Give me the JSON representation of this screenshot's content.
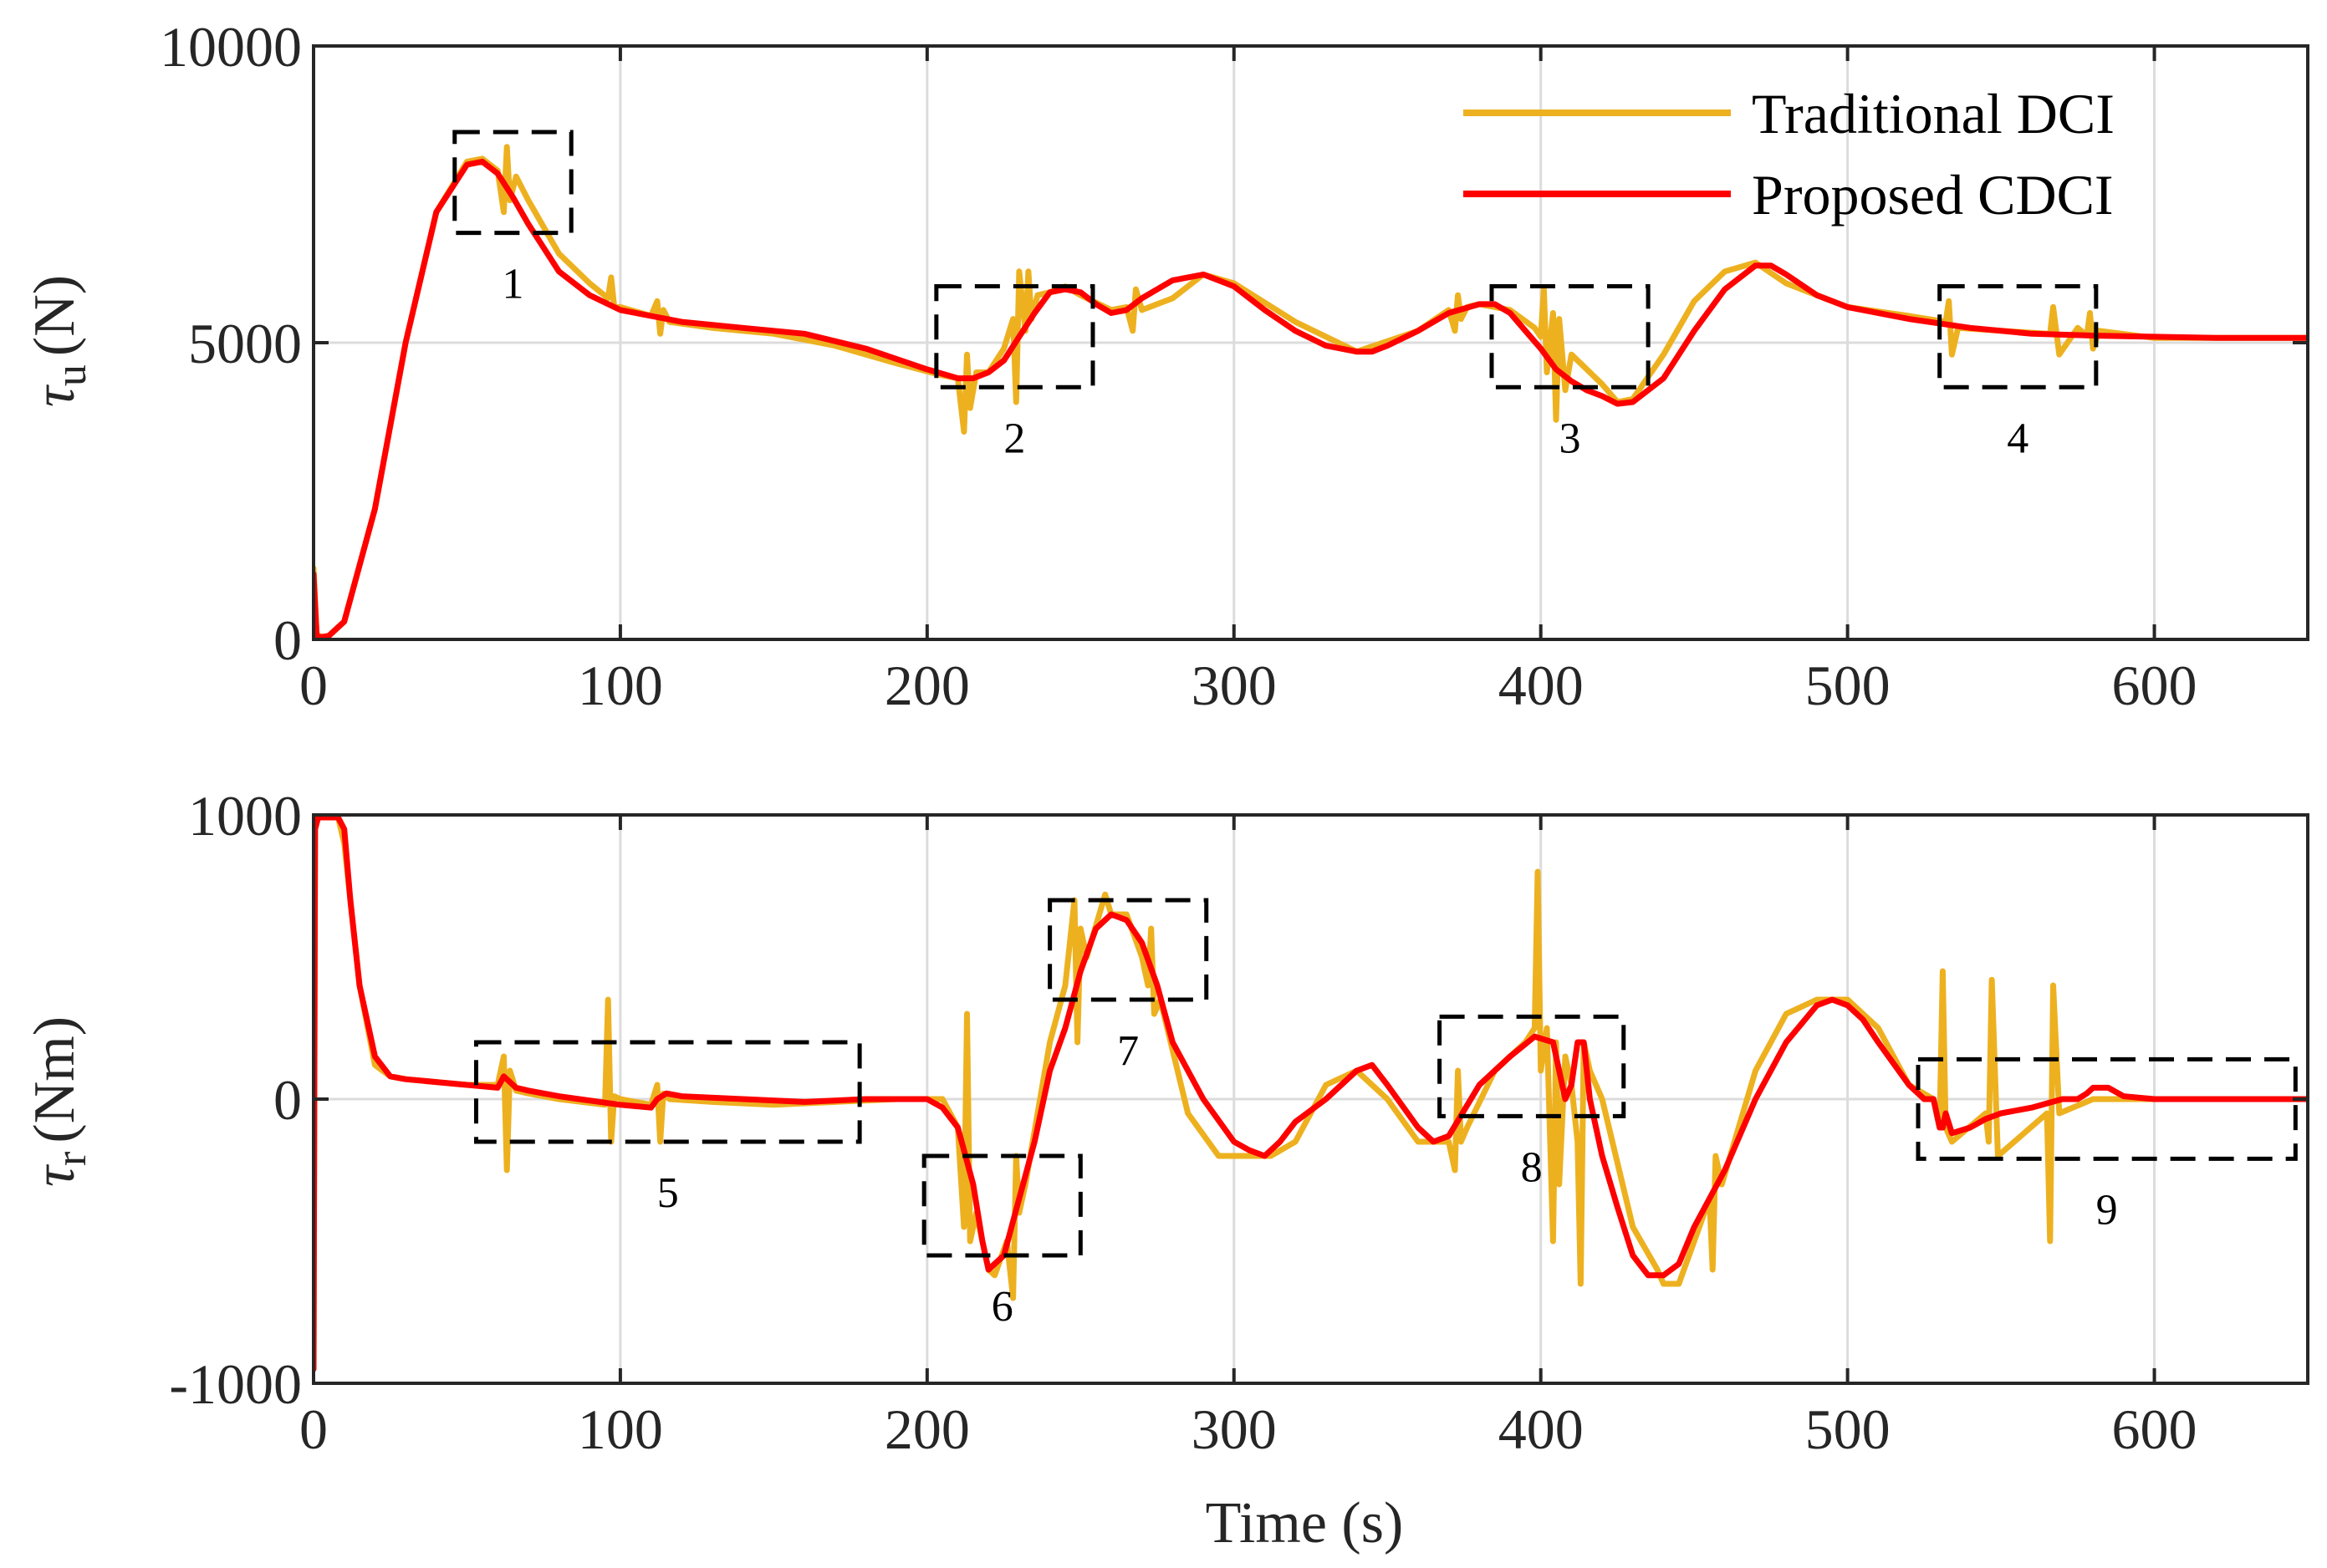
{
  "colors": {
    "traditional": "#EDB120",
    "proposed": "#FF0000",
    "grid": "#DCDCDC",
    "axis": "#262626",
    "box": "#000000"
  },
  "chart_data": [
    {
      "type": "line",
      "id": "top",
      "ylabel_symbol": "τ",
      "ylabel_sub": "u",
      "ylabel_unit": "(N)",
      "xlabel": "",
      "xlim": [
        0,
        650
      ],
      "ylim": [
        0,
        10000
      ],
      "xticks": [
        0,
        100,
        200,
        300,
        400,
        500,
        600
      ],
      "xtick_labels": [
        "0",
        "100",
        "200",
        "300",
        "400",
        "500",
        "600"
      ],
      "yticks": [
        0,
        5000,
        10000
      ],
      "ytick_labels": [
        "0",
        "5000",
        "10000"
      ],
      "grid": true,
      "legend": {
        "position": "top-right",
        "entries": [
          "Traditional DCI",
          "Proposed CDCI"
        ]
      },
      "series": [
        {
          "name": "Traditional DCI",
          "key": "traditional",
          "x": [
            0,
            1,
            2,
            3,
            5,
            10,
            20,
            30,
            40,
            50,
            55,
            60,
            62,
            63,
            64,
            66,
            70,
            80,
            90,
            96,
            97,
            98,
            100,
            110,
            112,
            113,
            114,
            116,
            130,
            150,
            170,
            190,
            205,
            210,
            212,
            213,
            214,
            216,
            220,
            225,
            228,
            229,
            230,
            232,
            233,
            234,
            236,
            240,
            245,
            250,
            260,
            265,
            267,
            268,
            270,
            280,
            290,
            300,
            320,
            340,
            360,
            370,
            372,
            373,
            374,
            376,
            380,
            390,
            398,
            400,
            401,
            402,
            404,
            405,
            406,
            408,
            410,
            420,
            425,
            430,
            440,
            450,
            460,
            470,
            480,
            500,
            520,
            532,
            533,
            534,
            536,
            550,
            565,
            566,
            567,
            569,
            575,
            578,
            579,
            580,
            582,
            600,
            620,
            650
          ],
          "y": [
            1200,
            100,
            50,
            20,
            60,
            300,
            2200,
            5000,
            7200,
            8050,
            8100,
            7900,
            7200,
            8300,
            7400,
            7800,
            7400,
            6500,
            6000,
            5750,
            6100,
            5600,
            5600,
            5450,
            5700,
            5150,
            5550,
            5350,
            5250,
            5150,
            4950,
            4650,
            4450,
            4400,
            3500,
            4800,
            3900,
            4500,
            4500,
            4900,
            5400,
            4000,
            6200,
            5200,
            6200,
            5400,
            5800,
            5850,
            5950,
            5800,
            5550,
            5600,
            5200,
            5900,
            5550,
            5750,
            6150,
            6000,
            5350,
            4850,
            5200,
            5550,
            5200,
            5800,
            5400,
            5600,
            5650,
            5550,
            5250,
            5100,
            5900,
            4500,
            5500,
            3700,
            5400,
            4200,
            4800,
            4300,
            4000,
            4050,
            4800,
            5700,
            6200,
            6350,
            6000,
            5600,
            5450,
            5350,
            5700,
            4800,
            5250,
            5200,
            5150,
            5150,
            5600,
            4800,
            5250,
            5120,
            5500,
            4900,
            5200,
            5080,
            5080,
            5080
          ]
        },
        {
          "name": "Proposed CDCI",
          "key": "proposed",
          "x": [
            0,
            1,
            2,
            3,
            5,
            10,
            20,
            30,
            40,
            50,
            55,
            60,
            65,
            70,
            80,
            90,
            100,
            110,
            120,
            140,
            160,
            180,
            200,
            210,
            215,
            220,
            225,
            230,
            235,
            240,
            245,
            250,
            255,
            260,
            265,
            270,
            280,
            290,
            300,
            310,
            320,
            330,
            340,
            345,
            350,
            360,
            370,
            380,
            385,
            390,
            395,
            400,
            405,
            410,
            415,
            420,
            425,
            430,
            440,
            450,
            460,
            470,
            475,
            480,
            490,
            500,
            520,
            540,
            560,
            580,
            600,
            620,
            650
          ],
          "y": [
            1100,
            60,
            10,
            10,
            60,
            300,
            2200,
            5000,
            7200,
            8000,
            8050,
            7850,
            7450,
            7000,
            6200,
            5800,
            5550,
            5450,
            5350,
            5250,
            5150,
            4900,
            4550,
            4400,
            4400,
            4500,
            4700,
            5100,
            5500,
            5850,
            5900,
            5850,
            5650,
            5500,
            5550,
            5750,
            6050,
            6150,
            5950,
            5550,
            5200,
            4950,
            4850,
            4850,
            4950,
            5200,
            5500,
            5650,
            5650,
            5500,
            5200,
            4900,
            4550,
            4350,
            4200,
            4100,
            3970,
            4000,
            4400,
            5200,
            5900,
            6300,
            6300,
            6150,
            5800,
            5600,
            5400,
            5250,
            5150,
            5120,
            5100,
            5080,
            5080
          ]
        }
      ],
      "boxes": [
        {
          "label": "1",
          "x": [
            46,
            84
          ],
          "y": [
            6850,
            8550
          ]
        },
        {
          "label": "2",
          "x": [
            203,
            254
          ],
          "y": [
            4250,
            5950
          ]
        },
        {
          "label": "3",
          "x": [
            384,
            435
          ],
          "y": [
            4250,
            5950
          ]
        },
        {
          "label": "4",
          "x": [
            530,
            581
          ],
          "y": [
            4250,
            5950
          ]
        }
      ]
    },
    {
      "type": "line",
      "id": "bottom",
      "ylabel_symbol": "τ",
      "ylabel_sub": "r",
      "ylabel_unit": "(Nm)",
      "xlabel": "Time (s)",
      "xlim": [
        0,
        650
      ],
      "ylim": [
        -1000,
        1000
      ],
      "xticks": [
        0,
        100,
        200,
        300,
        400,
        500,
        600
      ],
      "xtick_labels": [
        "0",
        "100",
        "200",
        "300",
        "400",
        "500",
        "600"
      ],
      "yticks": [
        -1000,
        0,
        1000
      ],
      "ytick_labels": [
        "-1000",
        "0",
        "1000"
      ],
      "grid": true,
      "series": [
        {
          "name": "Traditional DCI",
          "key": "traditional",
          "x": [
            0,
            0.5,
            1.5,
            2.5,
            5,
            8,
            10,
            15,
            20,
            25,
            30,
            40,
            50,
            60,
            62,
            63,
            64,
            66,
            70,
            80,
            95,
            96,
            97,
            98,
            100,
            110,
            112,
            113,
            114,
            116,
            130,
            150,
            170,
            190,
            200,
            205,
            210,
            212,
            213,
            214,
            216,
            220,
            222,
            226,
            228,
            229,
            230,
            232,
            240,
            245,
            248,
            249,
            250,
            252,
            258,
            260,
            265,
            270,
            272,
            273,
            274,
            276,
            285,
            295,
            305,
            312,
            320,
            330,
            340,
            350,
            360,
            370,
            372,
            373,
            374,
            376,
            385,
            395,
            398,
            399,
            400,
            402,
            404,
            405,
            406,
            408,
            410,
            412,
            413,
            414,
            416,
            420,
            430,
            438,
            440,
            445,
            450,
            455,
            456,
            457,
            459,
            470,
            480,
            490,
            495,
            500,
            510,
            520,
            528,
            530,
            531,
            532,
            534,
            545,
            546,
            547,
            549,
            565,
            566,
            567,
            569,
            580,
            600,
            620,
            650
          ],
          "y": [
            -950,
            950,
            1000,
            1000,
            1000,
            1000,
            900,
            400,
            120,
            80,
            70,
            60,
            50,
            50,
            150,
            -250,
            100,
            30,
            20,
            0,
            -20,
            350,
            -150,
            10,
            0,
            -20,
            50,
            -150,
            20,
            0,
            -10,
            -20,
            -10,
            0,
            0,
            0,
            -100,
            -450,
            300,
            -500,
            -400,
            -600,
            -620,
            -500,
            -700,
            -200,
            -400,
            -300,
            200,
            400,
            700,
            200,
            600,
            500,
            720,
            650,
            650,
            500,
            400,
            600,
            300,
            350,
            -50,
            -200,
            -200,
            -200,
            -150,
            50,
            100,
            0,
            -150,
            -150,
            -250,
            100,
            -150,
            -100,
            100,
            200,
            250,
            800,
            100,
            250,
            -500,
            200,
            -300,
            150,
            50,
            -150,
            -650,
            200,
            100,
            0,
            -450,
            -600,
            -650,
            -650,
            -500,
            -350,
            -600,
            -200,
            -300,
            100,
            300,
            350,
            350,
            350,
            250,
            50,
            0,
            -100,
            450,
            -100,
            -150,
            -50,
            -150,
            420,
            -200,
            -50,
            -500,
            400,
            -50,
            0,
            0,
            0,
            0
          ]
        },
        {
          "name": "Proposed CDCI",
          "key": "proposed",
          "x": [
            0,
            0.5,
            1.5,
            2.5,
            5,
            8,
            10,
            12,
            15,
            20,
            25,
            30,
            40,
            50,
            60,
            62,
            64,
            66,
            70,
            80,
            100,
            110,
            112,
            115,
            120,
            140,
            160,
            180,
            195,
            200,
            205,
            210,
            215,
            218,
            220,
            225,
            230,
            235,
            240,
            245,
            250,
            255,
            260,
            265,
            270,
            275,
            280,
            290,
            300,
            305,
            310,
            315,
            320,
            330,
            340,
            345,
            350,
            360,
            365,
            370,
            380,
            390,
            398,
            404,
            406,
            408,
            410,
            412,
            414,
            416,
            420,
            425,
            430,
            435,
            440,
            445,
            450,
            460,
            470,
            480,
            490,
            495,
            500,
            505,
            510,
            520,
            525,
            528,
            530,
            531,
            532,
            534,
            540,
            545,
            550,
            560,
            570,
            575,
            578,
            580,
            585,
            590,
            600,
            620,
            630,
            650
          ],
          "y": [
            -950,
            950,
            1000,
            1000,
            1000,
            1000,
            950,
            700,
            400,
            150,
            80,
            70,
            60,
            50,
            40,
            80,
            60,
            40,
            30,
            10,
            -20,
            -30,
            0,
            20,
            10,
            0,
            -10,
            0,
            0,
            0,
            -30,
            -100,
            -300,
            -500,
            -600,
            -550,
            -350,
            -150,
            100,
            250,
            450,
            600,
            650,
            630,
            550,
            400,
            200,
            0,
            -150,
            -180,
            -200,
            -150,
            -80,
            0,
            100,
            120,
            50,
            -100,
            -150,
            -130,
            50,
            150,
            220,
            200,
            100,
            0,
            50,
            200,
            200,
            0,
            -200,
            -380,
            -550,
            -620,
            -620,
            -580,
            -450,
            -250,
            0,
            200,
            330,
            350,
            330,
            280,
            200,
            50,
            0,
            0,
            -100,
            -100,
            -50,
            -120,
            -100,
            -70,
            -50,
            -30,
            0,
            0,
            20,
            40,
            40,
            10,
            0,
            0,
            0,
            0
          ]
        }
      ],
      "boxes": [
        {
          "label": "5",
          "x": [
            53,
            178
          ],
          "y": [
            -150,
            200
          ]
        },
        {
          "label": "6",
          "x": [
            199,
            250
          ],
          "y": [
            -550,
            -200
          ]
        },
        {
          "label": "7",
          "x": [
            240,
            291
          ],
          "y": [
            350,
            700
          ]
        },
        {
          "label": "8",
          "x": [
            367,
            427
          ],
          "y": [
            -60,
            290
          ]
        },
        {
          "label": "9",
          "x": [
            523,
            646
          ],
          "y": [
            -210,
            140
          ]
        }
      ]
    }
  ]
}
